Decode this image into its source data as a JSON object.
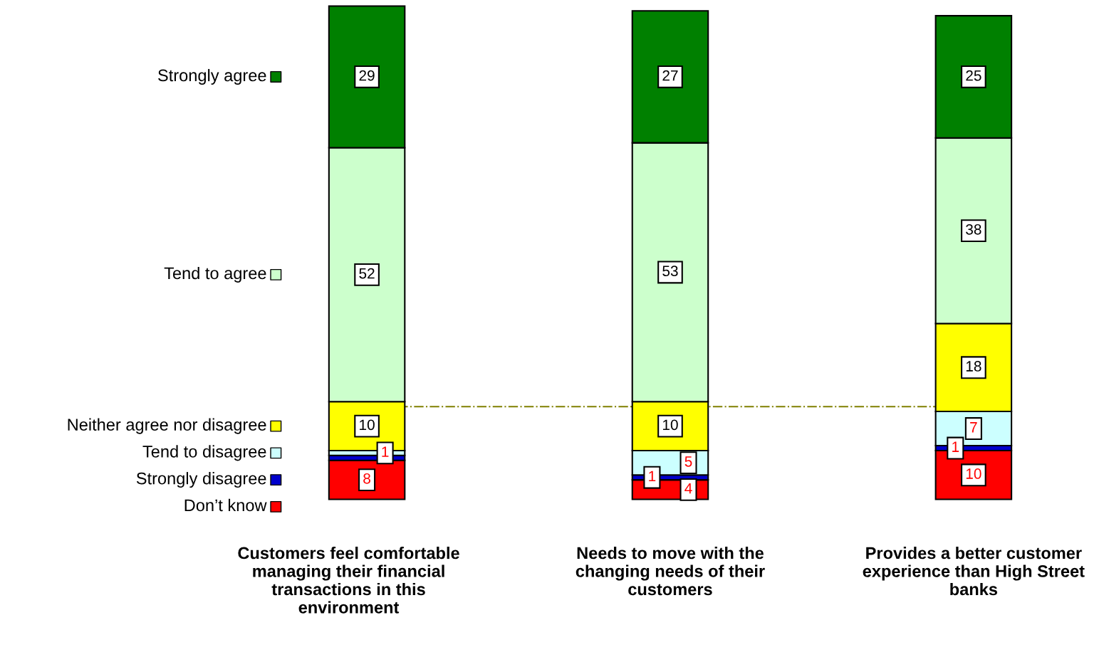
{
  "chart_data": {
    "type": "bar",
    "stacked": true,
    "categories": [
      "Customers feel comfortable\nmanaging their financial\ntransactions in this\nenvironment",
      "Needs to move with the\nchanging needs of their\ncustomers",
      "Provides a better customer\nexperience than High Street\nbanks"
    ],
    "series": [
      {
        "name": "Don’t know",
        "color": "#ff0000",
        "values": [
          8,
          4,
          10
        ],
        "value_labels": [
          "8",
          "4",
          "10"
        ]
      },
      {
        "name": "Strongly disagree",
        "color": "#0000cc",
        "values": [
          1,
          1,
          1
        ],
        "value_labels": [
          null,
          "1",
          "1"
        ]
      },
      {
        "name": "Tend to disagree",
        "color": "#ccffff",
        "values": [
          1,
          5,
          7
        ],
        "value_labels": [
          "1",
          "5",
          "7"
        ]
      },
      {
        "name": "Neither agree nor disagree",
        "color": "#ffff00",
        "values": [
          10,
          10,
          18
        ],
        "value_labels": [
          "10",
          "10",
          "18"
        ]
      },
      {
        "name": "Tend to agree",
        "color": "#ccffcc",
        "values": [
          52,
          53,
          38
        ],
        "value_labels": [
          "52",
          "53",
          "38"
        ]
      },
      {
        "name": "Strongly agree",
        "color": "#008000",
        "values": [
          29,
          27,
          25
        ],
        "value_labels": [
          "29",
          "27",
          "25"
        ]
      }
    ],
    "ref_lines": [
      {
        "axis": "y",
        "value": 19,
        "color": "#808000",
        "line_style": "dashdot"
      }
    ],
    "legend": "left"
  }
}
